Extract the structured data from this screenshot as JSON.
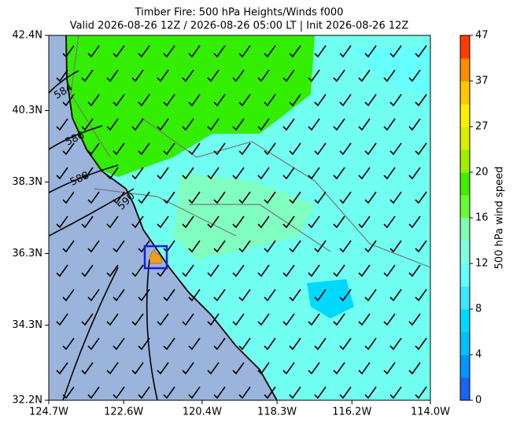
{
  "chart_data": {
    "type": "map",
    "title": "Timber Fire: 500 hPa Heights/Winds f000",
    "subtitle": "Valid 2026-08-26 12Z / 2026-08-26 05:00 LT | Init 2026-08-26 12Z",
    "xlim": [
      -124.7,
      -114.0
    ],
    "ylim": [
      32.2,
      42.4
    ],
    "xticks": [
      {
        "value": -124.7,
        "label": "124.7W"
      },
      {
        "value": -122.6,
        "label": "122.6W"
      },
      {
        "value": -120.4,
        "label": "120.4W"
      },
      {
        "value": -118.3,
        "label": "118.3W"
      },
      {
        "value": -116.2,
        "label": "116.2W"
      },
      {
        "value": -114.0,
        "label": "114.0W"
      }
    ],
    "yticks": [
      {
        "value": 32.2,
        "label": "32.2N"
      },
      {
        "value": 34.3,
        "label": "34.3N"
      },
      {
        "value": 36.3,
        "label": "36.3N"
      },
      {
        "value": 38.3,
        "label": "38.3N"
      },
      {
        "value": 40.3,
        "label": "40.3N"
      },
      {
        "value": 42.4,
        "label": "42.4N"
      }
    ],
    "contour_labels": [
      "584",
      "586",
      "588",
      "590"
    ],
    "fire": {
      "lon": -121.7,
      "lat": 36.2
    },
    "colorbar": {
      "label": "500 hPa wind speed",
      "ticks": [
        0,
        4,
        8,
        12,
        16,
        20,
        27,
        37,
        47
      ],
      "colors": [
        "#1a64f0",
        "#0096ff",
        "#00c0ff",
        "#00d8ff",
        "#3ce6ff",
        "#66ffff",
        "#80ffe0",
        "#80ffb8",
        "#66ff33",
        "#3cf000",
        "#a0f000",
        "#d8f000",
        "#fff000",
        "#ffc800",
        "#ff8c00",
        "#ff3c00"
      ]
    }
  }
}
